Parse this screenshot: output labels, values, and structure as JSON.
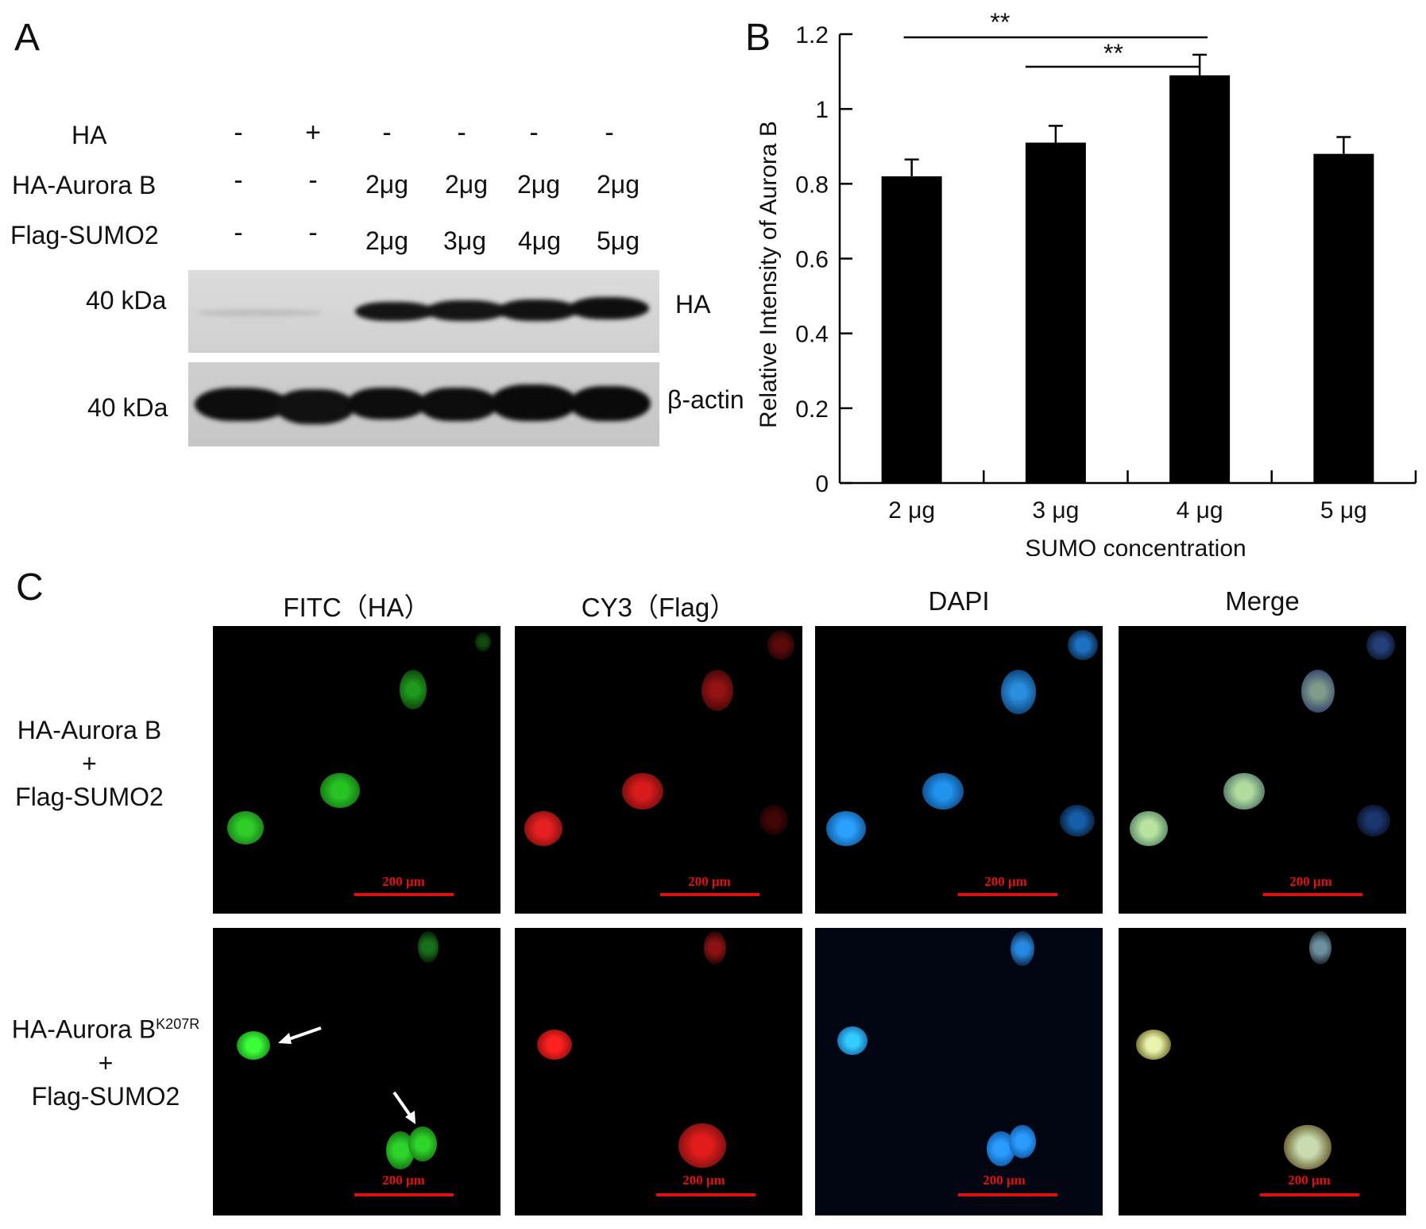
{
  "panel_a": {
    "letter": "A",
    "rows": [
      {
        "label": "HA",
        "values": [
          "-",
          "+",
          "-",
          "-",
          "-",
          "-"
        ]
      },
      {
        "label": "HA-Aurora B",
        "values": [
          "-",
          "-",
          "2μg",
          "2μg",
          "2μg",
          "2μg"
        ]
      },
      {
        "label": "Flag-SUMO2",
        "values": [
          "-",
          "-",
          "2μg",
          "3μg",
          "4μg",
          "5μg"
        ]
      }
    ],
    "blot_top": {
      "marker": "40 kDa",
      "target": "HA"
    },
    "blot_bottom": {
      "marker": "40 kDa",
      "target": "β-actin"
    }
  },
  "panel_b": {
    "letter": "B",
    "significance": [
      "**",
      "**"
    ]
  },
  "chart_data": {
    "type": "bar",
    "categories": [
      "2 μg",
      "3 μg",
      "4 μg",
      "5 μg"
    ],
    "values": [
      0.82,
      0.91,
      1.09,
      0.88
    ],
    "errors": [
      0.045,
      0.045,
      0.055,
      0.045
    ],
    "xlabel": "SUMO concentration",
    "ylabel": "Relative Intensity of Aurora B",
    "ylim": [
      0,
      1.2
    ],
    "yticks": [
      0,
      0.2,
      0.4,
      0.6,
      0.8,
      1,
      1.2
    ],
    "ytick_labels": [
      "0",
      "0.2",
      "0.4",
      "0.6",
      "0.8",
      "1",
      "1.2"
    ],
    "grid": false,
    "bar_color": "#000000"
  },
  "panel_c": {
    "letter": "C",
    "columns": [
      "FITC（HA）",
      "CY3（Flag）",
      "DAPI",
      "Merge"
    ],
    "row1": {
      "line1": "HA-Aurora B",
      "line2": "+",
      "line3": "Flag-SUMO2"
    },
    "row2": {
      "line1": "HA-Aurora B",
      "superscript": "K207R",
      "line2": "+",
      "line3": "Flag-SUMO2"
    },
    "scale_label": "200 μm",
    "colors": {
      "fitc": "#22c41e",
      "cy3": "#e01818",
      "dapi": "#1e8cf0",
      "merge": "#a8d890",
      "scale": "#e01010"
    }
  }
}
